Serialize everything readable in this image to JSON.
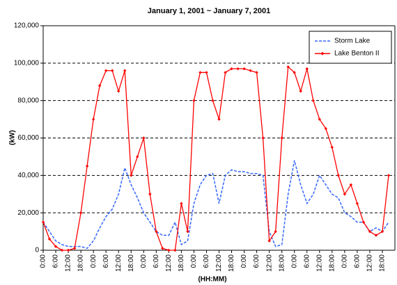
{
  "chart_data": {
    "type": "line",
    "title": "January 1, 2001 ~ January 7, 2001",
    "x_label": "(HH:MM)",
    "y_label": "(kW)",
    "categories": [
      "0:00",
      null,
      "6:00",
      null,
      "12:00",
      null,
      "18:00",
      null,
      "0:00",
      null,
      "6:00",
      null,
      "12:00",
      null,
      "18:00",
      null,
      "0:00",
      null,
      "6:00",
      null,
      "12:00",
      null,
      "18:00",
      null,
      "0:00",
      null,
      "6:00",
      null,
      "12:00",
      null,
      "18:00",
      null,
      "0:00",
      null,
      "6:00",
      null,
      "12:00",
      null,
      "18:00",
      null,
      "0:00",
      null,
      "6:00",
      null,
      "12:00",
      null,
      "18:00",
      null,
      "0:00",
      null,
      "6:00",
      null,
      "12:00",
      null,
      "18:00",
      null
    ],
    "series": [
      {
        "name": "Storm Lake",
        "color": "#3366ff",
        "line_style": "dashed",
        "marker": null,
        "values": [
          15000,
          10000,
          5000,
          3000,
          2000,
          2000,
          2000,
          1000,
          5000,
          12000,
          18000,
          22000,
          30000,
          44000,
          35000,
          28000,
          20000,
          15000,
          10000,
          8000,
          8000,
          15000,
          3000,
          5000,
          25000,
          35000,
          40000,
          41000,
          25000,
          40000,
          43000,
          42000,
          42000,
          41000,
          41000,
          40000,
          10000,
          2000,
          3000,
          30000,
          48000,
          35000,
          25000,
          30000,
          40000,
          35000,
          30000,
          28000,
          20000,
          18000,
          15000,
          15000,
          10000,
          12000,
          10000,
          15000
        ]
      },
      {
        "name": "Lake Benton II",
        "color": "#ff0000",
        "line_style": "solid",
        "marker": "diamond",
        "values": [
          15000,
          6000,
          2000,
          0,
          0,
          1000,
          20000,
          45000,
          70000,
          88000,
          96000,
          96000,
          85000,
          96000,
          40000,
          50000,
          60000,
          30000,
          10000,
          1000,
          0,
          0,
          25000,
          10000,
          80000,
          95000,
          95000,
          80000,
          70000,
          95000,
          97000,
          97000,
          97000,
          96000,
          95000,
          60000,
          5000,
          10000,
          60000,
          98000,
          95000,
          85000,
          97000,
          80000,
          70000,
          65000,
          55000,
          40000,
          30000,
          35000,
          25000,
          15000,
          10000,
          8000,
          10000,
          40000
        ]
      }
    ],
    "ylim": [
      0,
      120000
    ],
    "yticks": [
      0,
      {
        "value": 20000,
        "label": "20,000"
      },
      {
        "value": 40000,
        "label": "40,000"
      },
      {
        "value": 60000,
        "label": "60,000"
      },
      {
        "value": 80000,
        "label": "80,000"
      },
      {
        "value": 100000,
        "label": "100,000"
      },
      {
        "value": 120000,
        "label": "120,000"
      }
    ],
    "grid": true,
    "legend": "top-right"
  }
}
